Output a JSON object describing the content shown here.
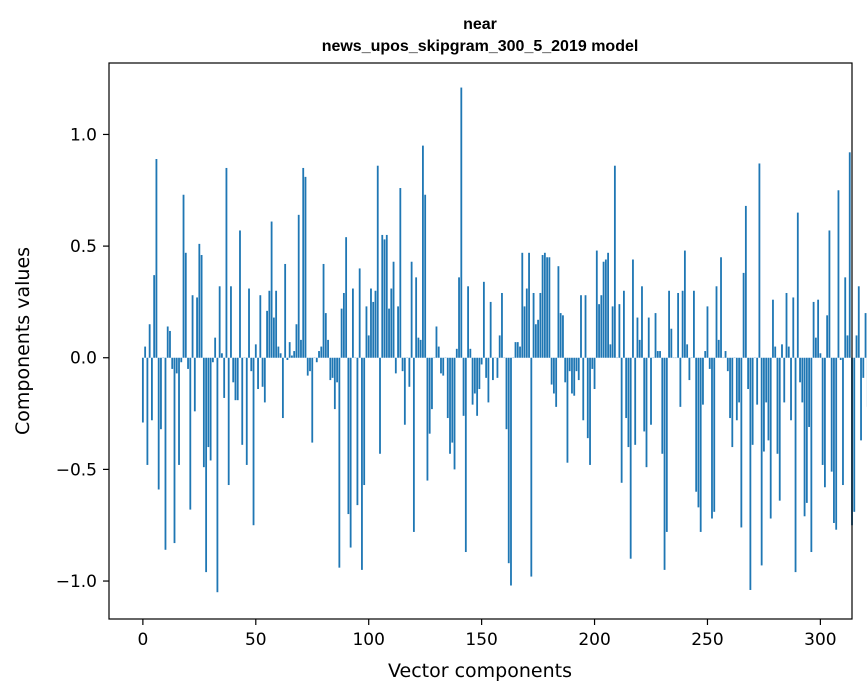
{
  "chart_data": {
    "type": "bar",
    "title": "near",
    "subtitle": "news_upos_skipgram_300_5_2019 model",
    "xlabel": "Vector components",
    "ylabel": "Components values",
    "xlim": [
      -15,
      314
    ],
    "ylim": [
      -1.17,
      1.32
    ],
    "xticks": [
      0,
      50,
      100,
      150,
      200,
      250,
      300
    ],
    "yticks": [
      -1.0,
      -0.5,
      0.0,
      0.5,
      1.0
    ],
    "ytick_labels": [
      "−1.0",
      "−0.5",
      "0.0",
      "0.5",
      "1.0"
    ],
    "grid": false,
    "bar_color": "#1f77b4",
    "values": [
      -0.29,
      0.05,
      -0.48,
      0.15,
      -0.28,
      0.37,
      0.89,
      -0.59,
      -0.32,
      0.0,
      -0.86,
      0.14,
      0.12,
      -0.05,
      -0.83,
      -0.07,
      -0.48,
      -0.02,
      0.73,
      0.47,
      -0.05,
      -0.68,
      0.28,
      -0.24,
      0.27,
      0.51,
      0.46,
      -0.49,
      -0.96,
      -0.4,
      -0.46,
      -0.02,
      0.09,
      -1.05,
      0.32,
      0.02,
      -0.18,
      0.85,
      -0.57,
      0.32,
      -0.11,
      -0.19,
      -0.19,
      0.57,
      -0.39,
      0.0,
      -0.48,
      0.31,
      -0.06,
      -0.75,
      0.06,
      -0.14,
      0.28,
      -0.13,
      -0.2,
      0.21,
      0.3,
      0.61,
      0.18,
      0.3,
      0.05,
      0.02,
      -0.27,
      0.42,
      -0.01,
      0.07,
      0.01,
      0.03,
      0.15,
      0.64,
      0.08,
      0.85,
      0.81,
      -0.08,
      -0.06,
      -0.38,
      0.0,
      -0.02,
      0.03,
      0.05,
      0.42,
      0.2,
      0.08,
      -0.1,
      -0.09,
      -0.23,
      -0.11,
      -0.94,
      0.22,
      0.29,
      0.54,
      -0.7,
      -0.85,
      0.31,
      0.0,
      -0.66,
      0.4,
      -0.95,
      -0.57,
      0.23,
      0.1,
      0.31,
      0.25,
      0.3,
      0.86,
      -0.43,
      0.55,
      0.53,
      0.55,
      0.22,
      0.31,
      0.43,
      -0.07,
      0.23,
      0.76,
      -0.06,
      -0.3,
      0.0,
      -0.13,
      0.43,
      -0.78,
      0.36,
      0.09,
      0.08,
      0.95,
      0.73,
      -0.55,
      -0.34,
      -0.23,
      0.0,
      0.14,
      0.05,
      -0.07,
      -0.08,
      0.0,
      -0.27,
      -0.43,
      -0.38,
      -0.5,
      0.04,
      0.36,
      1.21,
      -0.26,
      -0.87,
      0.32,
      0.04,
      -0.21,
      -0.16,
      -0.26,
      -0.14,
      -0.03,
      0.34,
      -0.09,
      -0.2,
      0.25,
      -0.1,
      0.0,
      -0.09,
      0.1,
      0.29,
      0.0,
      -0.32,
      -0.92,
      -1.02,
      0.0,
      0.07,
      0.07,
      0.05,
      0.47,
      0.23,
      0.31,
      0.47,
      -0.98,
      0.29,
      0.15,
      0.17,
      0.29,
      0.46,
      0.47,
      0.45,
      0.45,
      -0.12,
      -0.16,
      -0.22,
      0.41,
      0.2,
      0.19,
      -0.11,
      -0.47,
      -0.06,
      -0.16,
      -0.17,
      -0.06,
      -0.1,
      0.28,
      -0.28,
      0.28,
      -0.36,
      -0.48,
      -0.05,
      -0.14,
      0.48,
      0.24,
      0.28,
      0.43,
      0.44,
      0.47,
      0.06,
      0.23,
      0.86,
      0.0,
      0.24,
      -0.56,
      0.3,
      -0.27,
      -0.4,
      -0.9,
      0.44,
      -0.39,
      0.18,
      0.08,
      0.32,
      -0.33,
      -0.49,
      0.18,
      -0.3,
      0.0,
      0.2,
      0.03,
      0.03,
      -0.43,
      -0.95,
      -0.78,
      0.3,
      0.13,
      0.0,
      0.0,
      0.29,
      -0.22,
      0.3,
      0.48,
      0.06,
      -0.1,
      0.0,
      0.3,
      -0.6,
      -0.67,
      -0.78,
      -0.21,
      0.03,
      0.23,
      -0.05,
      -0.72,
      -0.69,
      0.32,
      0.08,
      0.45,
      0.0,
      0.03,
      -0.06,
      -0.27,
      -0.4,
      0.0,
      -0.28,
      -0.2,
      -0.76,
      0.38,
      0.68,
      -0.14,
      -1.04,
      -0.39,
      0.0,
      -0.21,
      0.87,
      -0.93,
      -0.42,
      -0.2,
      -0.37,
      -0.72,
      0.26,
      0.05,
      -0.43,
      -0.64,
      0.06,
      -0.2,
      0.29,
      0.05,
      -0.28,
      0.27,
      -0.96,
      0.65,
      -0.11,
      -0.2,
      -0.71,
      -0.65,
      -0.31,
      -0.87,
      0.25,
      0.09,
      0.26,
      0.02,
      -0.48,
      -0.58,
      0.19,
      0.57,
      -0.51,
      -0.74,
      -0.77,
      0.75,
      -0.01,
      -0.57,
      0.36,
      0.1,
      0.92,
      -0.75,
      -0.69,
      0.1,
      0.32,
      -0.37,
      -0.09,
      0.2,
      -0.22
    ]
  }
}
